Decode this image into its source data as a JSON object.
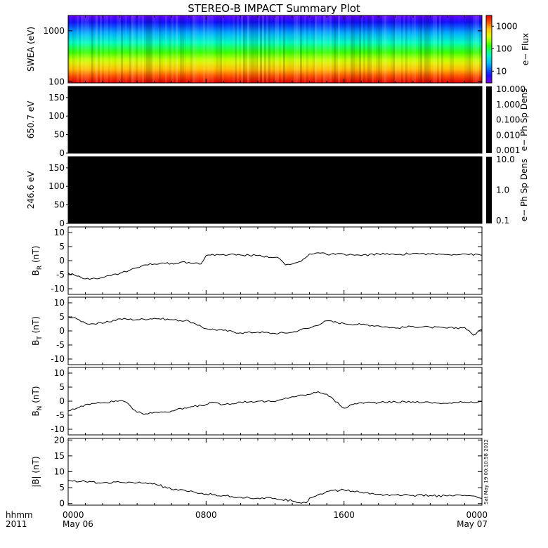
{
  "title": "STEREO-B IMPACT Summary Plot",
  "footer": {
    "left_line1": "hhmm",
    "left_line2": "2011",
    "x_ticks": [
      {
        "line1": "0000",
        "line2": "May 06",
        "hour": 0
      },
      {
        "line1": "0800",
        "line2": "",
        "hour": 8
      },
      {
        "line1": "1600",
        "line2": "",
        "hour": 16
      },
      {
        "line1": "0000",
        "line2": "May 07",
        "hour": 24
      }
    ],
    "timestamp": "Sat May 19 00:10:58 2012"
  },
  "colors": {
    "background": "#ffffff",
    "axis": "#000000",
    "black_panel": "#000000",
    "line": "#000000"
  },
  "chart_data": [
    {
      "type": "heatmap",
      "panel": "swea",
      "ylabel": "SWEA (eV)",
      "y_scale": "log",
      "ylim": [
        95,
        2000
      ],
      "y_ticks": [
        {
          "v": 1000,
          "label": "1000"
        },
        {
          "v": 100,
          "label": "100"
        }
      ],
      "x_range_hours": [
        0,
        24
      ],
      "colorbar": {
        "label": "e− Flux",
        "scale": "log",
        "range": [
          3,
          3000
        ],
        "ticks": [
          {
            "v": 1000,
            "label": "1000"
          },
          {
            "v": 100,
            "label": "100"
          },
          {
            "v": 10,
            "label": "10"
          }
        ]
      },
      "description_bands": "flux highest (red) at lowest energies, decreasing to blue/purple near 2000 eV"
    },
    {
      "type": "heatmap",
      "panel": "pad650",
      "ylabel": "650.7 eV",
      "ylim": [
        0,
        180
      ],
      "y_ticks": [
        {
          "v": 150,
          "label": "150"
        },
        {
          "v": 100,
          "label": "100"
        },
        {
          "v": 50,
          "label": "50"
        },
        {
          "v": 0,
          "label": "0"
        }
      ],
      "fill": "black",
      "colorbar": {
        "label": "e− Ph Sp Dens",
        "scale": "log",
        "ticks": [
          {
            "label": "10.000"
          },
          {
            "label": "1.000"
          },
          {
            "label": "0.100"
          },
          {
            "label": "0.010"
          },
          {
            "label": "0.001"
          }
        ]
      }
    },
    {
      "type": "heatmap",
      "panel": "pad246",
      "ylabel": "246.6 eV",
      "ylim": [
        0,
        180
      ],
      "y_ticks": [
        {
          "v": 150,
          "label": "150"
        },
        {
          "v": 100,
          "label": "100"
        },
        {
          "v": 50,
          "label": "50"
        },
        {
          "v": 0,
          "label": "0"
        }
      ],
      "fill": "black",
      "colorbar": {
        "label": "e− Ph Sp Dens",
        "scale": "log",
        "ticks": [
          {
            "label": "10.0"
          },
          {
            "label": "1.0"
          },
          {
            "label": "0.1"
          }
        ]
      }
    },
    {
      "type": "line",
      "panel": "br",
      "ylabel_main": "B",
      "ylabel_sub": "R",
      "ylabel_unit": " (nT)",
      "ylim": [
        -12,
        12
      ],
      "y_ticks": [
        10,
        5,
        0,
        -5,
        -10
      ],
      "x_hours": [
        0,
        0.5,
        1,
        1.5,
        2,
        3,
        4,
        4.5,
        5,
        5.5,
        6,
        6.5,
        7,
        7.5,
        7.7,
        8,
        9,
        10,
        11,
        12,
        12.3,
        12.6,
        13,
        13.5,
        14,
        14.5,
        15,
        16,
        17,
        18,
        19,
        20,
        21,
        22,
        23,
        24
      ],
      "values": [
        -4.5,
        -5.5,
        -6.5,
        -6.2,
        -6.0,
        -4.5,
        -2.5,
        -1.5,
        -1.2,
        -0.8,
        -1.0,
        -0.6,
        -0.6,
        -0.8,
        -1.2,
        1.8,
        2.2,
        2.0,
        1.8,
        1.2,
        0.5,
        -1.5,
        -1.2,
        -0.3,
        2.4,
        2.8,
        2.2,
        2.3,
        1.8,
        2.4,
        2.1,
        2.6,
        2.3,
        2.2,
        2.4,
        1.9
      ]
    },
    {
      "type": "line",
      "panel": "bt",
      "ylabel_main": "B",
      "ylabel_sub": "T",
      "ylabel_unit": " (nT)",
      "ylim": [
        -12,
        12
      ],
      "y_ticks": [
        10,
        5,
        0,
        -5,
        -10
      ],
      "x_hours": [
        0,
        0.5,
        1,
        1.5,
        2,
        3,
        4,
        5,
        6,
        7,
        7.5,
        8,
        9,
        10,
        11,
        12,
        13,
        13.5,
        14,
        15,
        16,
        17,
        18,
        19,
        20,
        21,
        22,
        23,
        23.5,
        24
      ],
      "values": [
        5.0,
        4.3,
        2.8,
        2.5,
        2.7,
        4.3,
        4.0,
        4.5,
        4.0,
        3.5,
        2.0,
        0.8,
        0.2,
        -0.7,
        -0.4,
        -0.9,
        -0.5,
        0.5,
        1.0,
        3.6,
        2.6,
        2.3,
        1.8,
        1.0,
        1.6,
        1.3,
        1.0,
        1.2,
        -1.5,
        0.7
      ]
    },
    {
      "type": "line",
      "panel": "bn",
      "ylabel_main": "B",
      "ylabel_sub": "N",
      "ylabel_unit": " (nT)",
      "ylim": [
        -12,
        12
      ],
      "y_ticks": [
        10,
        5,
        0,
        -5,
        -10
      ],
      "x_hours": [
        0,
        0.5,
        1,
        1.5,
        2,
        3,
        3.5,
        4,
        4.5,
        5,
        6,
        7,
        8,
        8.2,
        9,
        10,
        11,
        12,
        12.5,
        13,
        14,
        14.5,
        15,
        16,
        16.5,
        17,
        18,
        19,
        20,
        21,
        22,
        23,
        24
      ],
      "values": [
        -3.5,
        -2.5,
        -1.2,
        -0.8,
        -0.6,
        0.2,
        -1.0,
        -4.0,
        -4.5,
        -4.0,
        -3.5,
        -2.2,
        -1.2,
        -0.5,
        -1.2,
        -0.3,
        0.0,
        -0.2,
        0.8,
        1.6,
        2.4,
        3.4,
        2.5,
        -2.5,
        -1.2,
        -0.5,
        -0.5,
        -0.3,
        -0.2,
        -0.5,
        -0.8,
        -0.3,
        -0.1
      ]
    },
    {
      "type": "line",
      "panel": "bmag",
      "ylabel_full": "|B| (nT)",
      "ylim": [
        -0.5,
        20.5
      ],
      "y_ticks": [
        20,
        15,
        10,
        5,
        0
      ],
      "x_hours": [
        0,
        1,
        2,
        3,
        4,
        5,
        6,
        7,
        8,
        9,
        10,
        11,
        12,
        13,
        13.8,
        14,
        15,
        16,
        17,
        18,
        19,
        20,
        21,
        22,
        23,
        24
      ],
      "values": [
        7.3,
        6.9,
        6.5,
        6.7,
        6.5,
        6.3,
        4.4,
        3.8,
        3.0,
        2.5,
        2.0,
        1.7,
        1.6,
        0.8,
        0.2,
        1.7,
        3.8,
        4.3,
        3.5,
        2.9,
        2.7,
        2.6,
        2.5,
        2.4,
        2.6,
        1.6
      ]
    }
  ]
}
